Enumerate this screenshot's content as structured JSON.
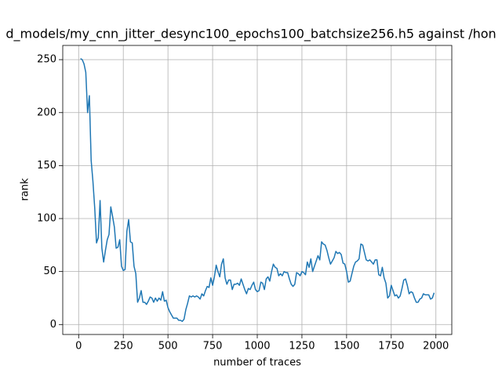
{
  "chart_data": {
    "type": "line",
    "title": "d_models/my_cnn_jitter_desync100_epochs100_batchsize256.h5 against /hon",
    "x_label": "number of traces",
    "y_label": "rank",
    "xlim": [
      -89,
      2089
    ],
    "ylim": [
      -9.4,
      263.4
    ],
    "xticks": [
      0,
      250,
      500,
      750,
      1000,
      1250,
      1500,
      1750,
      2000
    ],
    "yticks": [
      0,
      50,
      100,
      150,
      200,
      250
    ],
    "grid": true,
    "x": [
      10,
      20,
      30,
      40,
      50,
      60,
      70,
      80,
      90,
      100,
      110,
      120,
      130,
      140,
      150,
      160,
      170,
      180,
      190,
      200,
      210,
      220,
      230,
      240,
      250,
      260,
      270,
      280,
      290,
      300,
      310,
      320,
      330,
      340,
      350,
      360,
      370,
      380,
      390,
      400,
      410,
      420,
      430,
      440,
      450,
      460,
      470,
      480,
      490,
      500,
      510,
      520,
      530,
      540,
      550,
      560,
      570,
      580,
      590,
      600,
      610,
      620,
      630,
      640,
      650,
      660,
      670,
      680,
      690,
      700,
      710,
      720,
      730,
      740,
      750,
      760,
      770,
      780,
      790,
      800,
      810,
      820,
      830,
      840,
      850,
      860,
      870,
      880,
      890,
      900,
      910,
      920,
      930,
      940,
      950,
      960,
      970,
      980,
      990,
      1000,
      1010,
      1020,
      1030,
      1040,
      1050,
      1060,
      1070,
      1080,
      1090,
      1100,
      1110,
      1120,
      1130,
      1140,
      1150,
      1160,
      1170,
      1180,
      1190,
      1200,
      1210,
      1220,
      1230,
      1240,
      1250,
      1260,
      1270,
      1280,
      1290,
      1300,
      1310,
      1320,
      1330,
      1340,
      1350,
      1360,
      1370,
      1380,
      1390,
      1400,
      1410,
      1420,
      1430,
      1440,
      1450,
      1460,
      1470,
      1480,
      1490,
      1500,
      1510,
      1520,
      1530,
      1540,
      1550,
      1560,
      1570,
      1580,
      1590,
      1600,
      1610,
      1620,
      1630,
      1640,
      1650,
      1660,
      1670,
      1680,
      1690,
      1700,
      1710,
      1720,
      1730,
      1740,
      1750,
      1760,
      1770,
      1780,
      1790,
      1800,
      1810,
      1820,
      1830,
      1840,
      1850,
      1860,
      1870,
      1880,
      1890,
      1900,
      1910,
      1920,
      1930,
      1940,
      1950,
      1960,
      1970,
      1980,
      1990
    ],
    "series": [
      {
        "color": "#1f77b4",
        "values": [
          251,
          250,
          246,
          238,
          200,
          216,
          155,
          135,
          110,
          77,
          82,
          117,
          72,
          59,
          70,
          80,
          85,
          111,
          102,
          92,
          72,
          73,
          80,
          55,
          51,
          52,
          88,
          99,
          78,
          77,
          55,
          48,
          21,
          25,
          32,
          21,
          21,
          19,
          22,
          26,
          25,
          21,
          25,
          22,
          25,
          23,
          31,
          22,
          23,
          16,
          12,
          9,
          6,
          6,
          6,
          4,
          4,
          3,
          5,
          14,
          20,
          27,
          26,
          27,
          26,
          27,
          26,
          24,
          29,
          27,
          32,
          36,
          35,
          44,
          37,
          45,
          56,
          50,
          45,
          57,
          62,
          44,
          38,
          42,
          42,
          33,
          38,
          38,
          39,
          37,
          43,
          38,
          33,
          29,
          34,
          33,
          37,
          40,
          33,
          31,
          32,
          40,
          39,
          33,
          43,
          45,
          41,
          50,
          57,
          54,
          53,
          46,
          48,
          46,
          50,
          49,
          49,
          43,
          38,
          36,
          38,
          49,
          48,
          46,
          50,
          49,
          47,
          59,
          54,
          62,
          50,
          55,
          60,
          65,
          61,
          78,
          76,
          75,
          70,
          63,
          57,
          60,
          63,
          69,
          67,
          68,
          66,
          58,
          57,
          50,
          40,
          41,
          48,
          55,
          59,
          60,
          62,
          76,
          75,
          68,
          61,
          60,
          61,
          59,
          57,
          61,
          61,
          47,
          46,
          54,
          44,
          39,
          25,
          27,
          37,
          32,
          27,
          28,
          25,
          27,
          34,
          42,
          43,
          37,
          29,
          31,
          30,
          25,
          21,
          21,
          24,
          25,
          29,
          28,
          28,
          28,
          24,
          25,
          30
        ]
      }
    ]
  }
}
